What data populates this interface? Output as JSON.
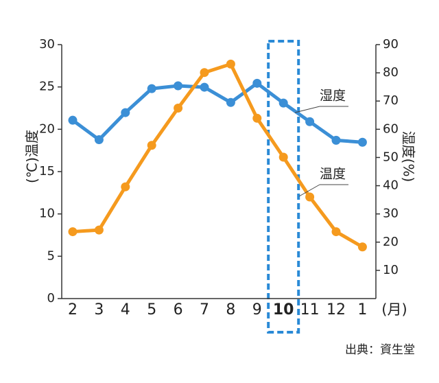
{
  "chart_data": {
    "type": "line",
    "categories": [
      "2",
      "3",
      "4",
      "5",
      "6",
      "7",
      "8",
      "9",
      "10",
      "11",
      "12",
      "1"
    ],
    "x_unit": "(月)",
    "highlight": "10",
    "ylabel": "(℃)温度",
    "y2label": "湿度(%)",
    "ylim": [
      0,
      30
    ],
    "yticks": [
      0,
      5,
      10,
      15,
      20,
      25,
      30
    ],
    "y2lim": [
      0,
      90
    ],
    "y2ticks": [
      10,
      20,
      30,
      40,
      50,
      60,
      70,
      80,
      90
    ],
    "series": [
      {
        "name": "湿度",
        "color": "#3b8fd6",
        "axis": "y2",
        "values": [
          63.2,
          56.3,
          65.9,
          74.4,
          75.4,
          74.9,
          69.5,
          76.3,
          69.3,
          62.7,
          56.1,
          55.4
        ]
      },
      {
        "name": "温度",
        "color": "#f59a1e",
        "values": [
          7.9,
          8.1,
          13.2,
          18.1,
          22.5,
          26.7,
          27.7,
          21.3,
          16.7,
          12.0,
          7.9,
          6.1
        ]
      }
    ],
    "source": "出典：資生堂"
  }
}
